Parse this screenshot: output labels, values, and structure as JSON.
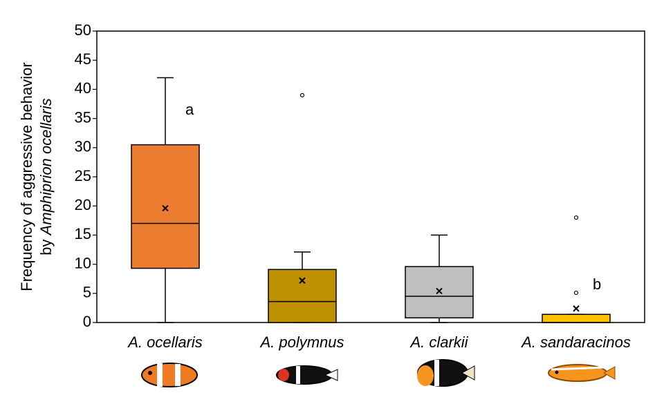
{
  "chart_data": {
    "type": "box",
    "ylabel": {
      "line1": "Frequency of aggressive behavior",
      "prefix": "by",
      "species": "Amphiprion ocellaris"
    },
    "categories": [
      "A. ocellaris",
      "A. polymnus",
      "A. clarkii",
      "A. sandaracinos"
    ],
    "series": [
      {
        "name": "A. ocellaris",
        "color": "#ed7d31",
        "whisker_low": 0,
        "q1": 9.3,
        "median": 17,
        "q3": 30.5,
        "whisker_high": 42,
        "mean": 19.6,
        "outliers": [],
        "annotation": "a"
      },
      {
        "name": "A. polymnus",
        "color": "#bf9000",
        "whisker_low": 0,
        "q1": 0,
        "median": 3.6,
        "q3": 9.1,
        "whisker_high": 12.1,
        "mean": 7.2,
        "outliers": [
          39
        ]
      },
      {
        "name": "A. clarkii",
        "color": "#bfbfbf",
        "whisker_low": 0,
        "q1": 0.8,
        "median": 4.5,
        "q3": 9.6,
        "whisker_high": 15,
        "mean": 5.4,
        "outliers": []
      },
      {
        "name": "A. sandaracinos",
        "color": "#ffc000",
        "whisker_low": 0,
        "q1": 0,
        "median": 0,
        "q3": 1.4,
        "whisker_high": 1.4,
        "mean": 2.4,
        "outliers": [
          18,
          5.1
        ],
        "annotation": "b"
      }
    ],
    "ylim": [
      0,
      50
    ],
    "yticks": [
      0,
      5,
      10,
      15,
      20,
      25,
      30,
      35,
      40,
      45,
      50
    ],
    "grid": false
  }
}
